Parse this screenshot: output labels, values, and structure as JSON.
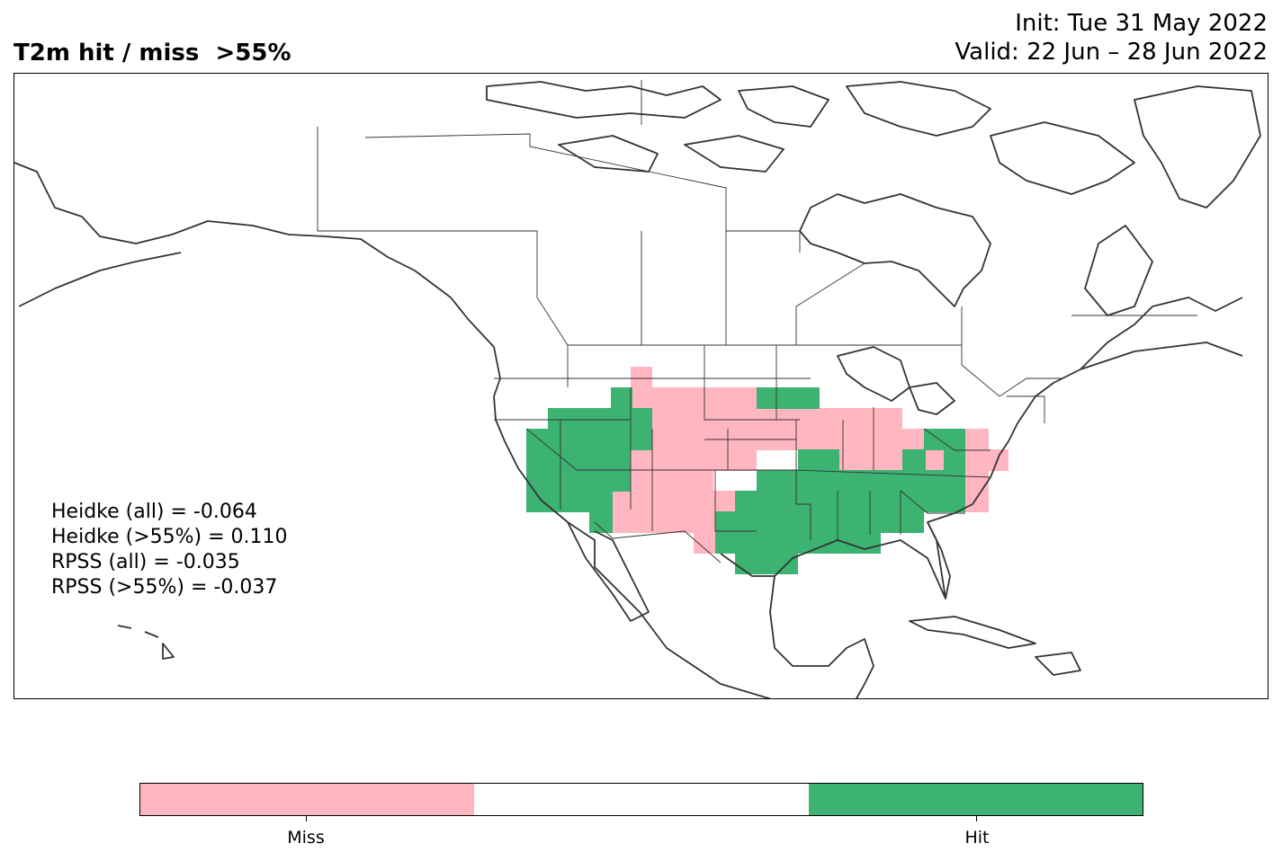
{
  "title": "T2m hit / miss  >55%",
  "init_line": "Init: Tue 31 May 2022",
  "valid_line": "Valid: 22 Jun – 28 Jun 2022",
  "scores": [
    "Heidke (all) = -0.064",
    "Heidke (>55%) = 0.110",
    "RPSS (all) = -0.035",
    "RPSS (>55%) = -0.037"
  ],
  "legend": {
    "categories": [
      "Miss",
      "",
      "Hit"
    ],
    "colors": [
      "#ffb6c1",
      "#ffffff",
      "#3cb371"
    ],
    "tick_labels": [
      "Miss",
      "Hit"
    ]
  },
  "colors": {
    "miss": "#ffb6c1",
    "hit": "#3cb371",
    "coast": "#333333",
    "border": "#333333"
  }
}
